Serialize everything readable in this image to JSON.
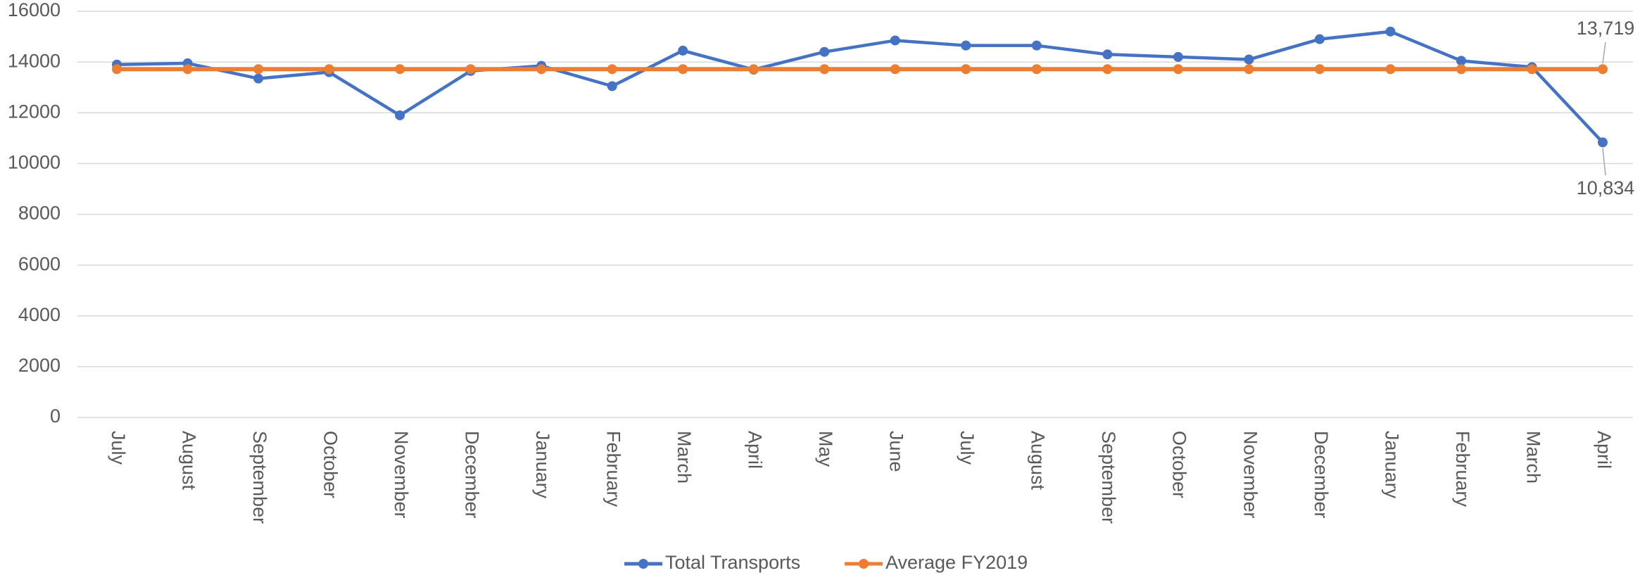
{
  "chart_data": {
    "type": "line",
    "categories": [
      "July",
      "August",
      "September",
      "October",
      "November",
      "December",
      "January",
      "February",
      "March",
      "April",
      "May",
      "June",
      "July",
      "August",
      "September",
      "October",
      "November",
      "December",
      "January",
      "February",
      "March",
      "April"
    ],
    "series": [
      {
        "name": "Total Transports",
        "color": "#4472c4",
        "values": [
          13900,
          13950,
          13350,
          13600,
          11900,
          13650,
          13850,
          13050,
          14450,
          13700,
          14400,
          14850,
          14650,
          14650,
          14300,
          14200,
          14100,
          14900,
          15200,
          14050,
          13800,
          10834
        ],
        "value_labels": [
          null,
          null,
          null,
          null,
          null,
          null,
          null,
          null,
          null,
          null,
          null,
          null,
          null,
          null,
          null,
          null,
          null,
          null,
          null,
          null,
          null,
          "10,834"
        ]
      },
      {
        "name": "Average FY2019",
        "color": "#ed7d31",
        "values": [
          13719,
          13719,
          13719,
          13719,
          13719,
          13719,
          13719,
          13719,
          13719,
          13719,
          13719,
          13719,
          13719,
          13719,
          13719,
          13719,
          13719,
          13719,
          13719,
          13719,
          13719,
          13719
        ],
        "value_labels": [
          null,
          null,
          null,
          null,
          null,
          null,
          null,
          null,
          null,
          null,
          null,
          null,
          null,
          null,
          null,
          null,
          null,
          null,
          null,
          null,
          null,
          "13,719"
        ]
      }
    ],
    "ylim": [
      0,
      16000
    ],
    "yticks": [
      0,
      2000,
      4000,
      6000,
      8000,
      10000,
      12000,
      14000,
      16000
    ],
    "grid": true,
    "legend": "bottom"
  }
}
